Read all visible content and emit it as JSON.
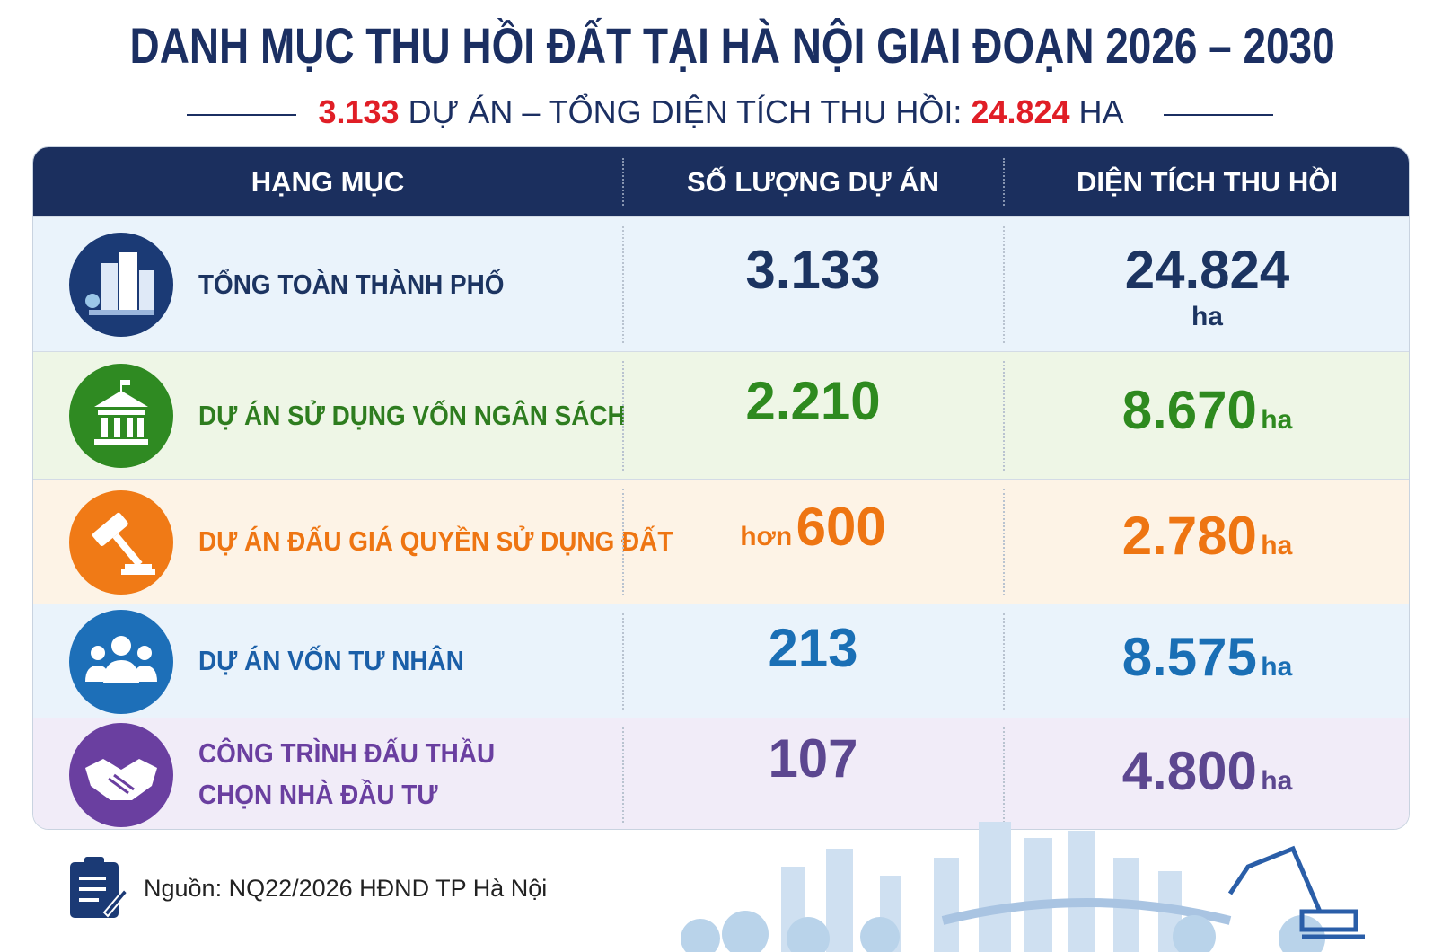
{
  "header": {
    "title": "DANH MỤC THU HỒI ĐẤT TẠI HÀ NỘI GIAI ĐOẠN 2026 – 2030",
    "subtitle": {
      "projects": "3.133",
      "projects_text": "DỰ ÁN – TỔNG DIỆN TÍCH THU HỒI:",
      "area": "24.824",
      "unit": "HA"
    }
  },
  "table": {
    "columns": [
      "HẠNG MỤC",
      "SỐ LƯỢNG DỰ ÁN",
      "DIỆN TÍCH THU HỒI"
    ],
    "rows": [
      {
        "category": [
          "TỔNG TOÀN THÀNH PHỐ"
        ],
        "projects": "3.133",
        "area": "24.824",
        "unit": "ha"
      },
      {
        "category": [
          "DỰ ÁN SỬ DỤNG VỐN NGÂN SÁCH"
        ],
        "projects": "2.210",
        "area": "8.670",
        "unit": "ha"
      },
      {
        "category": [
          "DỰ ÁN ĐẤU GIÁ QUYỀN SỬ DỤNG ĐẤT"
        ],
        "projects_prefix": "hơn",
        "projects": "600",
        "area": "2.780",
        "unit": "ha"
      },
      {
        "category": [
          "DỰ ÁN VỐN TƯ NHÂN"
        ],
        "projects": "213",
        "area": "8.575",
        "unit": "ha"
      },
      {
        "category": [
          "CÔNG TRÌNH ĐẤU THẦU",
          "CHỌN NHÀ ĐẦU TƯ"
        ],
        "projects": "107",
        "area": "4.800",
        "unit": "ha"
      }
    ]
  },
  "source": "Nguồn: NQ22/2026 HĐND TP Hà Nội"
}
